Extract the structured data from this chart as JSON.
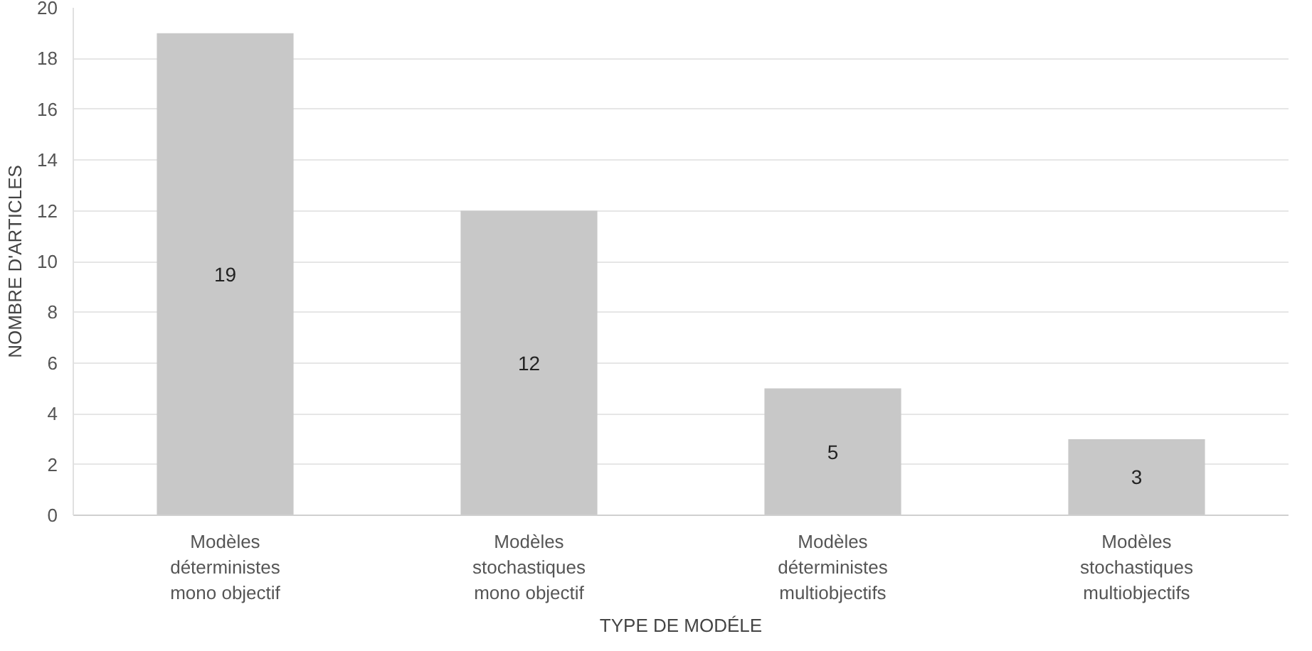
{
  "chart_data": {
    "type": "bar",
    "xlabel": "TYPE DE MODÉLE",
    "ylabel": "NOMBRE D'ARTICLES",
    "categories": [
      "Modèles\ndéterministes\nmono objectif",
      "Modèles\nstochastiques\nmono objectif",
      "Modèles\ndéterministes\nmultiobjectifs",
      "Modèles\nstochastiques\nmultiobjectifs"
    ],
    "values": [
      19,
      12,
      5,
      3
    ],
    "color": "#c8c8c8",
    "ylim": [
      0,
      20
    ],
    "yticks": [
      0,
      2,
      4,
      6,
      8,
      10,
      12,
      14,
      16,
      18,
      20
    ],
    "grid": "y",
    "data_labels": true
  }
}
